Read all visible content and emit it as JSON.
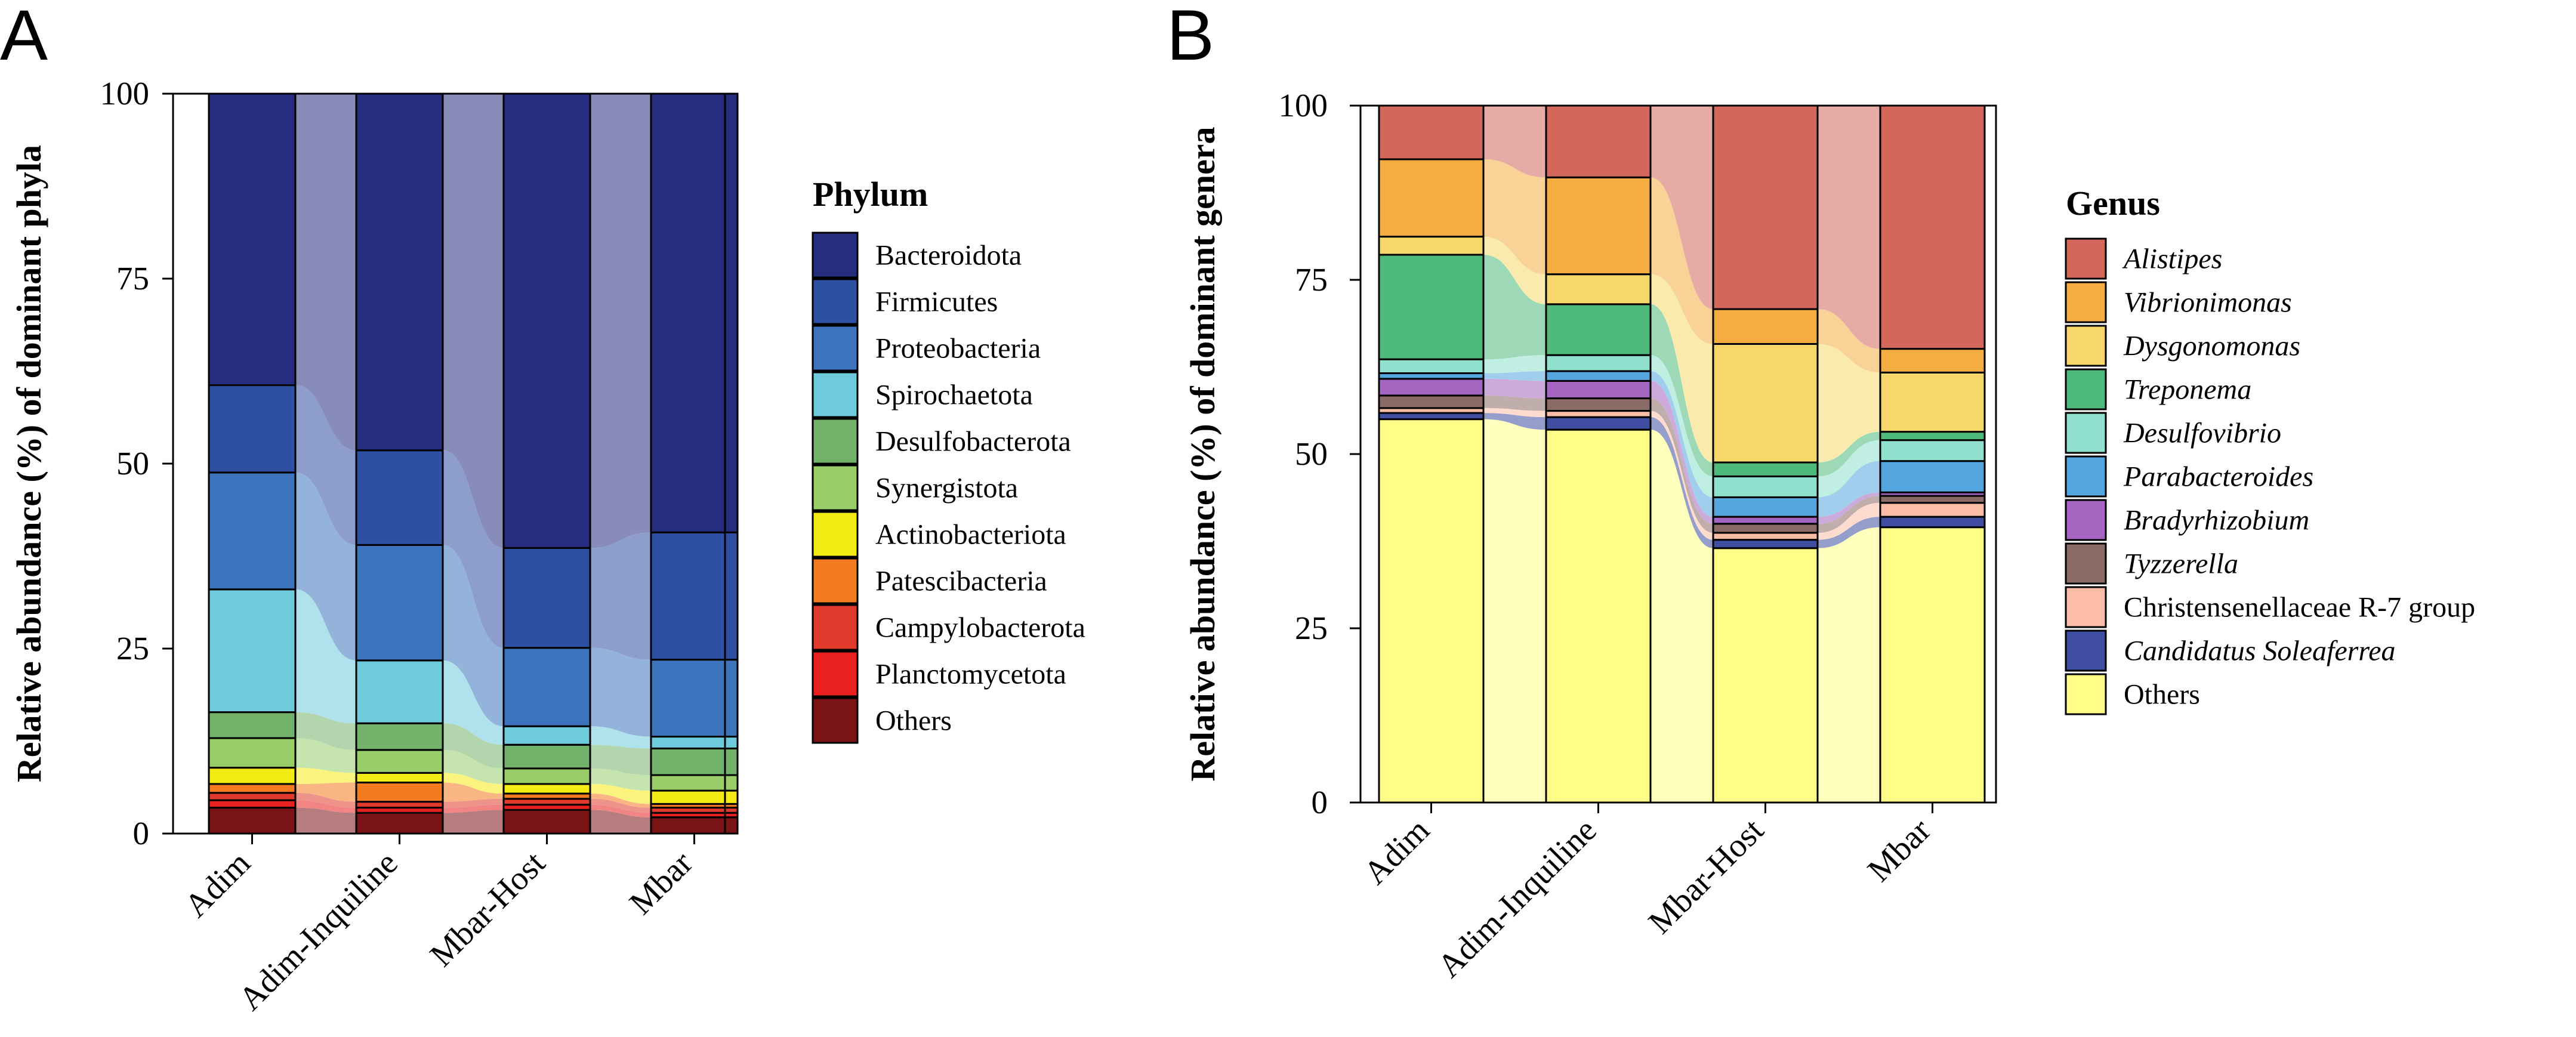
{
  "chart_data": [
    {
      "type": "stacked-bar",
      "panel": "A",
      "xlabel": "",
      "ylabel": "Relative abundance (%) of dominant phyla",
      "ylim": [
        0,
        100
      ],
      "yticks": [
        "0",
        "25",
        "50",
        "75",
        "100"
      ],
      "categories": [
        "Adim",
        "Adim-Inquiline",
        "Mbar-Host",
        "Mbar"
      ],
      "legend_title": "Phylum",
      "series": [
        {
          "name": "Others",
          "color": "#7a1316",
          "values": [
            3.5,
            2.8,
            3.2,
            2.2
          ]
        },
        {
          "name": "Planctomycetota",
          "color": "#e82020",
          "values": [
            1.0,
            0.7,
            0.7,
            0.6
          ]
        },
        {
          "name": "Campylobacterota",
          "color": "#df3a2b",
          "values": [
            1.0,
            0.8,
            0.8,
            0.7
          ]
        },
        {
          "name": "Patescibacteria",
          "color": "#f47b20",
          "values": [
            1.2,
            2.6,
            0.7,
            0.5
          ]
        },
        {
          "name": "Actinobacteriota",
          "color": "#f5eb14",
          "values": [
            2.2,
            1.3,
            1.3,
            1.8
          ]
        },
        {
          "name": "Synergistota",
          "color": "#98cd6a",
          "values": [
            4.0,
            3.1,
            2.1,
            2.1
          ]
        },
        {
          "name": "Desulfobacterota",
          "color": "#73b26a",
          "values": [
            3.5,
            3.6,
            3.2,
            3.6
          ]
        },
        {
          "name": "Spirochaetota",
          "color": "#6dcbdc",
          "values": [
            16.6,
            8.5,
            2.5,
            1.6
          ]
        },
        {
          "name": "Proteobacteria",
          "color": "#3d74bd",
          "values": [
            15.8,
            15.6,
            10.6,
            10.4
          ]
        },
        {
          "name": "Firmicutes",
          "color": "#2f4fa2",
          "values": [
            11.8,
            12.8,
            13.5,
            17.2
          ]
        },
        {
          "name": "Bacteroidota",
          "color": "#262d7e",
          "values": [
            39.4,
            48.2,
            61.4,
            59.3
          ]
        }
      ]
    },
    {
      "type": "stacked-bar",
      "panel": "B",
      "xlabel": "",
      "ylabel": "Relative abundance (%) of dominant genera",
      "ylim": [
        0,
        100
      ],
      "yticks": [
        "0",
        "25",
        "50",
        "75",
        "100"
      ],
      "categories": [
        "Adim",
        "Adim-Inquiline",
        "Mbar-Host",
        "Mbar"
      ],
      "legend_title": "Genus",
      "series": [
        {
          "name": "Others",
          "color": "#ffff88",
          "italic": false,
          "values": [
            55.0,
            53.5,
            36.5,
            39.5
          ]
        },
        {
          "name": "Candidatus Soleaferrea",
          "color": "#3f4ea0",
          "italic": true,
          "values": [
            0.9,
            1.8,
            1.2,
            1.5
          ]
        },
        {
          "name": "Christensenellaceae R-7 group",
          "color": "#fcbda6",
          "italic": false,
          "values": [
            0.7,
            0.9,
            1.0,
            2.0
          ]
        },
        {
          "name": "Tyzzerella",
          "color": "#8b6b66",
          "italic": true,
          "values": [
            1.8,
            1.8,
            1.3,
            1.0
          ]
        },
        {
          "name": "Bradyrhizobium",
          "color": "#a465c0",
          "italic": true,
          "values": [
            2.4,
            2.5,
            1.0,
            0.5
          ]
        },
        {
          "name": "Parabacteroides",
          "color": "#55a6e0",
          "italic": true,
          "values": [
            0.8,
            1.4,
            2.8,
            4.5
          ]
        },
        {
          "name": "Desulfovibrio",
          "color": "#8fe0cc",
          "italic": true,
          "values": [
            2.0,
            2.3,
            3.0,
            3.0
          ]
        },
        {
          "name": "Treponema",
          "color": "#4db97a",
          "italic": true,
          "values": [
            15.0,
            7.3,
            2.0,
            1.2
          ]
        },
        {
          "name": "Dysgonomonas",
          "color": "#f6d86a",
          "italic": true,
          "values": [
            2.6,
            4.3,
            17.0,
            8.5
          ]
        },
        {
          "name": "Vibrionimonas",
          "color": "#f3ad40",
          "italic": true,
          "values": [
            11.1,
            13.9,
            5.0,
            3.4
          ]
        },
        {
          "name": "Alistipes",
          "color": "#d4675c",
          "italic": true,
          "values": [
            7.7,
            10.3,
            29.2,
            34.9
          ]
        }
      ]
    }
  ]
}
